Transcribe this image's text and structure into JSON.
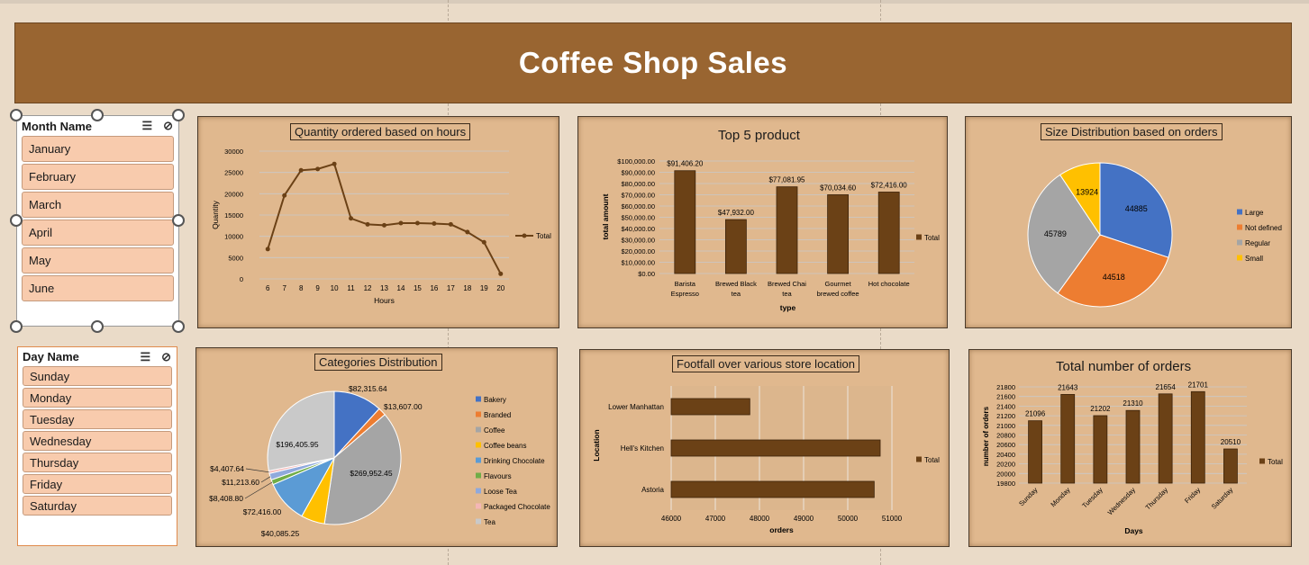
{
  "banner": {
    "title": "Coffee Shop Sales"
  },
  "colors": {
    "banner": "#996531",
    "panel": "#e0b88e",
    "bar": "#6b4116",
    "slicer_item": "#f8cbad"
  },
  "month_slicer": {
    "title": "Month Name",
    "icons": [
      "multi-select-icon",
      "clear-filter-icon"
    ],
    "items": [
      "January",
      "February",
      "March",
      "April",
      "May",
      "June"
    ]
  },
  "day_slicer": {
    "title": "Day Name",
    "icons": [
      "multi-select-icon",
      "clear-filter-icon"
    ],
    "items": [
      "Sunday",
      "Monday",
      "Tuesday",
      "Wednesday",
      "Thursday",
      "Friday",
      "Saturday"
    ]
  },
  "chart_data": [
    {
      "id": "hours",
      "type": "line",
      "title": "Quantity ordered  based on hours",
      "xlabel": "Hours",
      "ylabel": "Quantity",
      "x": [
        6,
        7,
        8,
        9,
        10,
        11,
        12,
        13,
        14,
        15,
        16,
        17,
        18,
        19,
        20
      ],
      "series": [
        {
          "name": "Total",
          "values": [
            7000,
            19600,
            25500,
            25800,
            27000,
            14200,
            12800,
            12600,
            13100,
            13100,
            13000,
            12800,
            11000,
            8600,
            1200
          ]
        }
      ],
      "ylim": [
        0,
        30000
      ],
      "yticks": [
        "0",
        "5000",
        "10000",
        "15000",
        "20000",
        "25000",
        "30000"
      ],
      "legend": "right"
    },
    {
      "id": "top5",
      "type": "bar",
      "title": "Top 5 product",
      "xlabel": "type",
      "ylabel": "total amount",
      "categories": [
        [
          "Barista",
          "Espresso"
        ],
        [
          "Brewed Black",
          "tea"
        ],
        [
          "Brewed Chai",
          "tea"
        ],
        [
          "Gourmet",
          "brewed coffee"
        ],
        [
          "Hot chocolate"
        ]
      ],
      "values": [
        91406.2,
        47932.0,
        77081.95,
        70034.6,
        72416.0
      ],
      "data_labels": [
        "$91,406.20",
        "$47,932.00",
        "$77,081.95",
        "$70,034.60",
        "$72,416.00"
      ],
      "series": [
        {
          "name": "Total"
        }
      ],
      "ylim": [
        0,
        100000
      ],
      "yticks": [
        "$0.00",
        "$10,000.00",
        "$20,000.00",
        "$30,000.00",
        "$40,000.00",
        "$50,000.00",
        "$60,000.00",
        "$70,000.00",
        "$80,000.00",
        "$90,000.00",
        "$100,000.00"
      ],
      "legend": "right"
    },
    {
      "id": "size",
      "type": "pie",
      "title": "Size Distribution based on orders",
      "labels": [
        "Large",
        "Not defined",
        "Regular",
        "Small"
      ],
      "values": [
        44885,
        44518,
        45789,
        13924
      ],
      "data_labels": [
        "44885",
        "44518",
        "45789",
        "13924"
      ],
      "colors": [
        "#4472c4",
        "#ed7d31",
        "#a5a5a5",
        "#ffc000"
      ],
      "legend": "right"
    },
    {
      "id": "categories",
      "type": "pie",
      "title": "Categories Distribution",
      "labels": [
        "Bakery",
        "Branded",
        "Coffee",
        "Coffee beans",
        "Drinking Chocolate",
        "Flavours",
        "Loose Tea",
        "Packaged Chocolate",
        "Tea"
      ],
      "values": [
        82315.64,
        13607.0,
        269952.45,
        40085.25,
        72416.0,
        8408.8,
        11213.6,
        4407.64,
        196405.95
      ],
      "data_labels": [
        "$82,315.64",
        "$13,607.00",
        "$269,952.45",
        "$40,085.25",
        "$72,416.00",
        "$8,408.80",
        "$11,213.60",
        "$4,407.64",
        "$196,405.95"
      ],
      "colors": [
        "#4472c4",
        "#ed7d31",
        "#a5a5a5",
        "#ffc000",
        "#5b9bd5",
        "#70ad47",
        "#8fa9dc",
        "#f4b6b6",
        "#c9c9c9"
      ],
      "legend": "right"
    },
    {
      "id": "footfall",
      "type": "bar",
      "orientation": "horizontal",
      "title": "Footfall over various store location",
      "xlabel": "orders",
      "ylabel": "Location",
      "categories": [
        "Lower Manhattan",
        "Hell's Kitchen",
        "Astoria"
      ],
      "values": [
        47782,
        50735,
        50599
      ],
      "series": [
        {
          "name": "Total"
        }
      ],
      "xlim": [
        46000,
        51000
      ],
      "xticks": [
        "46000",
        "47000",
        "48000",
        "49000",
        "50000",
        "51000"
      ],
      "legend": "right"
    },
    {
      "id": "orders",
      "type": "bar",
      "title": "Total number of orders",
      "xlabel": "Days",
      "ylabel": "number of orders",
      "categories": [
        "Sunday",
        "Monday",
        "Tuesday",
        "Wednesday",
        "Thursday",
        "Friday",
        "Saturday"
      ],
      "values": [
        21096,
        21643,
        21202,
        21310,
        21654,
        21701,
        20510
      ],
      "data_labels": [
        "21096",
        "21643",
        "21202",
        "21310",
        "21654",
        "21701",
        "20510"
      ],
      "series": [
        {
          "name": "Total"
        }
      ],
      "ylim": [
        19800,
        21800
      ],
      "yticks": [
        "19800",
        "20000",
        "20200",
        "20400",
        "20600",
        "20800",
        "21000",
        "21200",
        "21400",
        "21600",
        "21800"
      ],
      "legend": "right"
    }
  ]
}
